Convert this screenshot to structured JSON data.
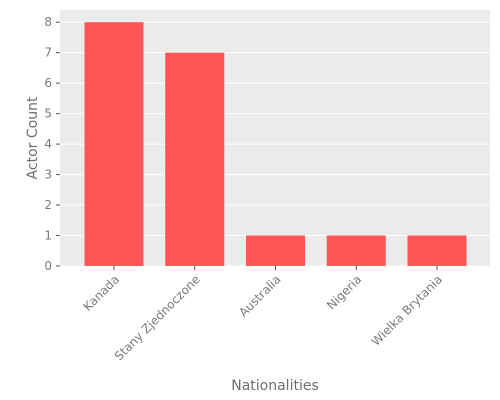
{
  "chart_data": {
    "type": "bar",
    "categories": [
      "Kanada",
      "Stany Zjednoczone",
      "Australia",
      "Nigeria",
      "Wielka Brytania"
    ],
    "values": [
      8,
      7,
      1,
      1,
      1
    ],
    "title": "",
    "xlabel": "Nationalities",
    "ylabel": "Actor Count",
    "ylim": [
      0,
      8.4
    ],
    "yticks": [
      0,
      1,
      2,
      3,
      4,
      5,
      6,
      7,
      8
    ],
    "grid": true,
    "legend": "none"
  },
  "colors": {
    "bar": "#ff5555",
    "plot_background": "#ebebeb",
    "grid": "#ffffff"
  }
}
